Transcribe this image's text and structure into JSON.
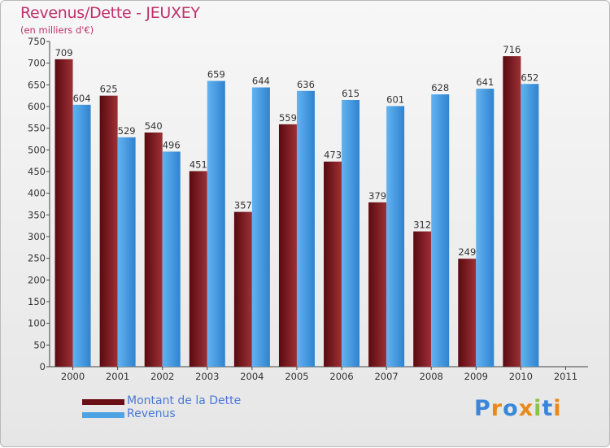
{
  "title": "Revenus/Dette - JEUXEY",
  "subtitle": "(en milliers d'€)",
  "brand": {
    "text": "Proxiti",
    "letter_colors": [
      "#3a86d8",
      "#e8891a",
      "#3a86d8",
      "#e8891a",
      "#8bc34a",
      "#3a86d8",
      "#e8891a"
    ]
  },
  "legend": [
    {
      "label": "Montant de la Dette",
      "color": "#6b0f17"
    },
    {
      "label": "Revenus",
      "color": "#4ea3e4"
    }
  ],
  "chart_data": {
    "type": "bar",
    "categories": [
      "2000",
      "2001",
      "2002",
      "2003",
      "2004",
      "2005",
      "2006",
      "2007",
      "2008",
      "2009",
      "2010",
      "2011"
    ],
    "series": [
      {
        "name": "Montant de la Dette",
        "color": "#8b2025",
        "values": [
          709,
          625,
          540,
          451,
          357,
          559,
          473,
          379,
          312,
          249,
          716,
          null
        ]
      },
      {
        "name": "Revenus",
        "color": "#4ea3e4",
        "values": [
          604,
          529,
          496,
          659,
          644,
          636,
          615,
          601,
          628,
          641,
          652,
          null
        ]
      }
    ],
    "ylim": [
      0,
      750
    ],
    "yticks": [
      0,
      50,
      100,
      150,
      200,
      250,
      300,
      350,
      400,
      450,
      500,
      550,
      600,
      650,
      700,
      750
    ],
    "grid": false,
    "legend_position": "bottom-left"
  }
}
